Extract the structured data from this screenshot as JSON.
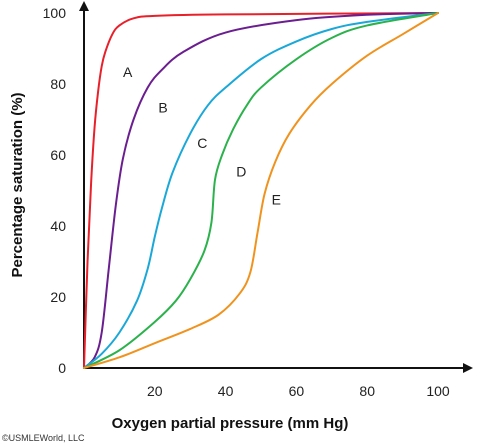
{
  "chart_data": {
    "type": "line",
    "title": "",
    "xlabel": "Oxygen partial pressure (mm Hg)",
    "ylabel": "Percentage saturation (%)",
    "xlim": [
      0,
      100
    ],
    "ylim": [
      0,
      100
    ],
    "xticks": [
      "20",
      "40",
      "60",
      "80",
      "100"
    ],
    "xtick_values": [
      20,
      40,
      60,
      80,
      100
    ],
    "yticks": [
      "0",
      "20",
      "40",
      "60",
      "80",
      "100"
    ],
    "ytick_values": [
      0,
      20,
      40,
      60,
      80,
      100
    ],
    "grid": false,
    "legend": "none (curves labeled directly)",
    "series": [
      {
        "name": "A",
        "color": "#e8202a",
        "points": [
          [
            0,
            0
          ],
          [
            1,
            30
          ],
          [
            2,
            52
          ],
          [
            3,
            68
          ],
          [
            4,
            78
          ],
          [
            5,
            85
          ],
          [
            6,
            89
          ],
          [
            8,
            94
          ],
          [
            10,
            96.5
          ],
          [
            14,
            98.5
          ],
          [
            20,
            99.2
          ],
          [
            40,
            99.6
          ],
          [
            100,
            100
          ]
        ]
      },
      {
        "name": "B",
        "color": "#6b1e8f",
        "points": [
          [
            0,
            0
          ],
          [
            3,
            3
          ],
          [
            5,
            10
          ],
          [
            7,
            28
          ],
          [
            9,
            46
          ],
          [
            11,
            59
          ],
          [
            14,
            70
          ],
          [
            18,
            79
          ],
          [
            22,
            84
          ],
          [
            28,
            89
          ],
          [
            40,
            94.5
          ],
          [
            60,
            98
          ],
          [
            80,
            99.5
          ],
          [
            100,
            100
          ]
        ]
      },
      {
        "name": "C",
        "color": "#1aa8d8",
        "points": [
          [
            0,
            0
          ],
          [
            5,
            4
          ],
          [
            10,
            10
          ],
          [
            15,
            19
          ],
          [
            18,
            28
          ],
          [
            20,
            37
          ],
          [
            22,
            45
          ],
          [
            25,
            55
          ],
          [
            30,
            66
          ],
          [
            35,
            74
          ],
          [
            40,
            79
          ],
          [
            50,
            87
          ],
          [
            60,
            92
          ],
          [
            70,
            95.5
          ],
          [
            80,
            97.5
          ],
          [
            100,
            100
          ]
        ]
      },
      {
        "name": "D",
        "color": "#2bb24c",
        "points": [
          [
            0,
            0
          ],
          [
            10,
            5
          ],
          [
            20,
            13
          ],
          [
            26,
            19
          ],
          [
            30,
            25
          ],
          [
            34,
            33
          ],
          [
            36,
            41
          ],
          [
            37,
            53
          ],
          [
            39,
            60
          ],
          [
            42,
            67
          ],
          [
            46,
            74
          ],
          [
            50,
            79
          ],
          [
            60,
            87
          ],
          [
            70,
            93
          ],
          [
            80,
            96.5
          ],
          [
            100,
            100
          ]
        ]
      },
      {
        "name": "E",
        "color": "#f0931e",
        "points": [
          [
            0,
            0
          ],
          [
            10,
            3
          ],
          [
            20,
            7
          ],
          [
            30,
            11
          ],
          [
            38,
            15
          ],
          [
            44,
            21
          ],
          [
            47,
            27
          ],
          [
            49,
            38
          ],
          [
            51,
            49
          ],
          [
            54,
            58
          ],
          [
            58,
            66
          ],
          [
            64,
            74
          ],
          [
            70,
            80
          ],
          [
            80,
            88
          ],
          [
            90,
            94
          ],
          [
            100,
            100
          ]
        ]
      }
    ],
    "annotations": [
      {
        "text": "A",
        "x": 11,
        "y": 82
      },
      {
        "text": "B",
        "x": 21,
        "y": 72
      },
      {
        "text": "C",
        "x": 32,
        "y": 62
      },
      {
        "text": "D",
        "x": 43,
        "y": 54
      },
      {
        "text": "E",
        "x": 53,
        "y": 46
      }
    ]
  },
  "footer": {
    "copyright": "©USMLEWorld, LLC"
  }
}
